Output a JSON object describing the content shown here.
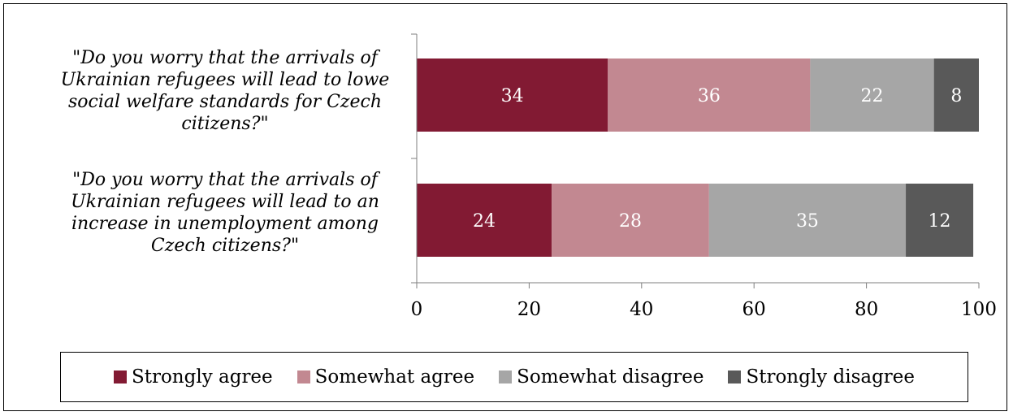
{
  "chart_data": {
    "type": "bar",
    "orientation": "horizontal",
    "stacked": true,
    "categories": [
      "\"Do you worry that the arrivals of Ukrainian refugees will lead to lowe social welfare standards for Czech citizens?\"",
      "\"Do you worry that the arrivals of Ukrainian refugees will lead to an increase in unemployment among Czech citizens?\""
    ],
    "series": [
      {
        "name": "Strongly agree",
        "color": "#821a33",
        "values": [
          34,
          24
        ]
      },
      {
        "name": "Somewhat agree",
        "color": "#c28891",
        "values": [
          36,
          28
        ]
      },
      {
        "name": "Somewhat disagree",
        "color": "#a6a6a6",
        "values": [
          22,
          35
        ]
      },
      {
        "name": "Strongly disagree",
        "color": "#595959",
        "values": [
          8,
          12
        ]
      }
    ],
    "xlim": [
      0,
      100
    ],
    "xticks": [
      0,
      20,
      40,
      60,
      80,
      100
    ],
    "grid": false,
    "legend_position": "bottom",
    "data_label_color": "#ffffff"
  }
}
